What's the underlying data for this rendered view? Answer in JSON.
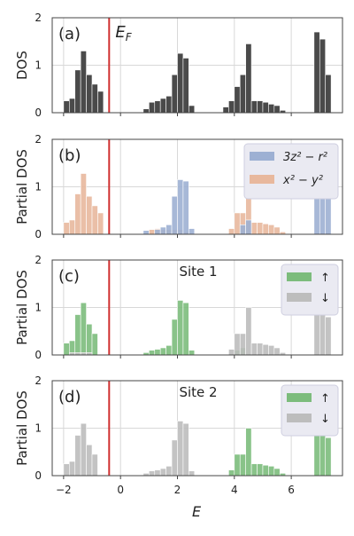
{
  "chart_data": {
    "type": "bar",
    "x_label": "E",
    "x_ticks": [
      -2,
      0,
      2,
      4,
      6
    ],
    "xlim": [
      -2.4,
      7.8
    ],
    "fermi_level": -0.4,
    "fermi_label": "E_F",
    "colors": {
      "total": "#4a4a4a",
      "orb_3z2": "#9db0d3",
      "orb_x2y2": "#e8b89d",
      "spin_up": "#7cbc7c",
      "spin_down": "#bdbdbd",
      "fermi": "#d03030",
      "grid": "#d8d8d8",
      "frame": "#444444",
      "legend_bg": "#eaeaf2"
    },
    "panels": [
      {
        "label": "(a)",
        "ylabel": "DOS",
        "ylim": [
          0,
          2
        ],
        "yticks": [
          0,
          1,
          2
        ],
        "annotation": "E_F",
        "series": [
          {
            "key": "total",
            "name": "",
            "bins": [
              [
                -2.0,
                0.25
              ],
              [
                -1.8,
                0.3
              ],
              [
                -1.6,
                0.9
              ],
              [
                -1.4,
                1.3
              ],
              [
                -1.2,
                0.8
              ],
              [
                -1.0,
                0.6
              ],
              [
                -0.8,
                0.45
              ],
              [
                0.8,
                0.08
              ],
              [
                1.0,
                0.22
              ],
              [
                1.2,
                0.25
              ],
              [
                1.4,
                0.3
              ],
              [
                1.6,
                0.35
              ],
              [
                1.8,
                0.8
              ],
              [
                2.0,
                1.25
              ],
              [
                2.2,
                1.15
              ],
              [
                2.4,
                0.15
              ],
              [
                3.6,
                0.12
              ],
              [
                3.8,
                0.25
              ],
              [
                4.0,
                0.55
              ],
              [
                4.2,
                0.8
              ],
              [
                4.4,
                1.45
              ],
              [
                4.6,
                0.25
              ],
              [
                4.8,
                0.25
              ],
              [
                5.0,
                0.22
              ],
              [
                5.2,
                0.18
              ],
              [
                5.4,
                0.15
              ],
              [
                5.6,
                0.05
              ],
              [
                6.8,
                1.7
              ],
              [
                7.0,
                1.55
              ],
              [
                7.2,
                0.8
              ]
            ]
          }
        ]
      },
      {
        "label": "(b)",
        "ylabel": "Partial DOS",
        "ylim": [
          0,
          2
        ],
        "yticks": [
          0,
          1,
          2
        ],
        "legend": [
          {
            "key": "orb_3z2",
            "label": "3z² − r²"
          },
          {
            "key": "orb_x2y2",
            "label": "x² − y²"
          }
        ],
        "series": [
          {
            "key": "orb_x2y2",
            "name": "x² − y²",
            "bins": [
              [
                -2.0,
                0.25
              ],
              [
                -1.8,
                0.3
              ],
              [
                -1.6,
                0.85
              ],
              [
                -1.4,
                1.28
              ],
              [
                -1.2,
                0.8
              ],
              [
                -1.0,
                0.6
              ],
              [
                -0.8,
                0.45
              ],
              [
                1.0,
                0.1
              ],
              [
                1.2,
                0.12
              ],
              [
                1.4,
                0.1
              ],
              [
                1.6,
                0.1
              ],
              [
                1.8,
                0.1
              ],
              [
                2.0,
                0.1
              ],
              [
                2.2,
                0.05
              ],
              [
                3.8,
                0.12
              ],
              [
                4.0,
                0.45
              ],
              [
                4.2,
                0.45
              ],
              [
                4.4,
                1.0
              ],
              [
                4.6,
                0.25
              ],
              [
                4.8,
                0.25
              ],
              [
                5.0,
                0.22
              ],
              [
                5.2,
                0.2
              ],
              [
                5.4,
                0.15
              ],
              [
                5.6,
                0.05
              ]
            ]
          },
          {
            "key": "orb_3z2",
            "name": "3z² − r²",
            "bins": [
              [
                0.8,
                0.08
              ],
              [
                1.2,
                0.1
              ],
              [
                1.4,
                0.15
              ],
              [
                1.6,
                0.2
              ],
              [
                1.8,
                0.8
              ],
              [
                2.0,
                1.15
              ],
              [
                2.2,
                1.12
              ],
              [
                2.4,
                0.12
              ],
              [
                4.2,
                0.2
              ],
              [
                4.4,
                0.3
              ],
              [
                6.8,
                1.7
              ],
              [
                7.0,
                1.55
              ],
              [
                7.2,
                0.8
              ]
            ]
          }
        ]
      },
      {
        "label": "(c)",
        "ylabel": "Partial DOS",
        "ylim": [
          0,
          2
        ],
        "yticks": [
          0,
          1,
          2
        ],
        "annotation": "Site 1",
        "legend": [
          {
            "key": "spin_up",
            "label": "↑"
          },
          {
            "key": "spin_down",
            "label": "↓"
          }
        ],
        "series": [
          {
            "key": "spin_up",
            "name": "↑",
            "bins": [
              [
                -2.0,
                0.25
              ],
              [
                -1.8,
                0.3
              ],
              [
                -1.6,
                0.85
              ],
              [
                -1.4,
                1.1
              ],
              [
                -1.2,
                0.65
              ],
              [
                -1.0,
                0.45
              ],
              [
                0.8,
                0.05
              ],
              [
                1.0,
                0.1
              ],
              [
                1.2,
                0.12
              ],
              [
                1.4,
                0.15
              ],
              [
                1.6,
                0.2
              ],
              [
                1.8,
                0.75
              ],
              [
                2.0,
                1.15
              ],
              [
                2.2,
                1.1
              ],
              [
                2.4,
                0.1
              ],
              [
                4.0,
                0.1
              ],
              [
                4.2,
                0.15
              ]
            ]
          },
          {
            "key": "spin_down",
            "name": "↓",
            "bins": [
              [
                -1.8,
                0.05
              ],
              [
                -1.6,
                0.05
              ],
              [
                -1.4,
                0.05
              ],
              [
                -1.2,
                0.05
              ],
              [
                3.8,
                0.12
              ],
              [
                4.0,
                0.45
              ],
              [
                4.2,
                0.45
              ],
              [
                4.4,
                1.0
              ],
              [
                4.6,
                0.25
              ],
              [
                4.8,
                0.25
              ],
              [
                5.0,
                0.22
              ],
              [
                5.2,
                0.2
              ],
              [
                5.4,
                0.15
              ],
              [
                5.6,
                0.05
              ],
              [
                6.8,
                1.7
              ],
              [
                7.0,
                1.55
              ],
              [
                7.2,
                0.8
              ]
            ]
          }
        ]
      },
      {
        "label": "(d)",
        "ylabel": "Partial DOS",
        "ylim": [
          0,
          2
        ],
        "yticks": [
          0,
          1,
          2
        ],
        "annotation": "Site 2",
        "legend": [
          {
            "key": "spin_up",
            "label": "↑"
          },
          {
            "key": "spin_down",
            "label": "↓"
          }
        ],
        "series": [
          {
            "key": "spin_down",
            "name": "↓",
            "bins": [
              [
                -2.0,
                0.25
              ],
              [
                -1.8,
                0.3
              ],
              [
                -1.6,
                0.85
              ],
              [
                -1.4,
                1.1
              ],
              [
                -1.2,
                0.65
              ],
              [
                -1.0,
                0.45
              ],
              [
                0.8,
                0.05
              ],
              [
                1.0,
                0.1
              ],
              [
                1.2,
                0.12
              ],
              [
                1.4,
                0.15
              ],
              [
                1.6,
                0.2
              ],
              [
                1.8,
                0.75
              ],
              [
                2.0,
                1.15
              ],
              [
                2.2,
                1.1
              ],
              [
                2.4,
                0.1
              ]
            ]
          },
          {
            "key": "spin_up",
            "name": "↑",
            "bins": [
              [
                3.8,
                0.12
              ],
              [
                4.0,
                0.45
              ],
              [
                4.2,
                0.45
              ],
              [
                4.4,
                1.0
              ],
              [
                4.6,
                0.25
              ],
              [
                4.8,
                0.25
              ],
              [
                5.0,
                0.22
              ],
              [
                5.2,
                0.2
              ],
              [
                5.4,
                0.15
              ],
              [
                5.6,
                0.05
              ],
              [
                6.8,
                1.7
              ],
              [
                7.0,
                1.55
              ],
              [
                7.2,
                0.8
              ]
            ]
          }
        ]
      }
    ]
  }
}
